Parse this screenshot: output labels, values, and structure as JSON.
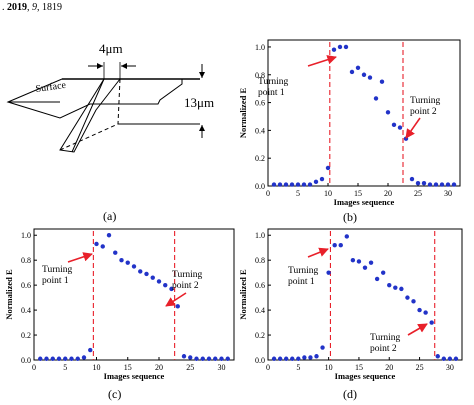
{
  "header": {
    "year": "2019",
    "volume": "9",
    "pages": "1819"
  },
  "schematic": {
    "surface_label": "Surface",
    "width_label": "4μm",
    "depth_label": "13μm",
    "panel_label": "(a)"
  },
  "chart_data": [
    {
      "type": "scatter",
      "panel": "(b)",
      "xlabel": "Images sequence",
      "ylabel": "Normalized E",
      "xlim": [
        0,
        32
      ],
      "ylim": [
        0,
        1.05
      ],
      "xticks": [
        0,
        5,
        10,
        15,
        20,
        25,
        30
      ],
      "yticks": [
        0.0,
        0.2,
        0.4,
        0.6,
        0.8,
        1.0
      ],
      "x": [
        1,
        2,
        3,
        4,
        5,
        6,
        7,
        8,
        9,
        10,
        11,
        12,
        13,
        14,
        15,
        16,
        17,
        18,
        19,
        20,
        21,
        22,
        23,
        24,
        25,
        26,
        27,
        28,
        29,
        30,
        31
      ],
      "y": [
        0.01,
        0.01,
        0.01,
        0.01,
        0.01,
        0.01,
        0.01,
        0.03,
        0.05,
        0.13,
        0.98,
        1.0,
        1.0,
        0.82,
        0.85,
        0.8,
        0.78,
        0.63,
        0.75,
        0.53,
        0.44,
        0.42,
        0.34,
        0.05,
        0.02,
        0.02,
        0.01,
        0.01,
        0.01,
        0.01,
        0.01
      ],
      "vlines": [
        10.3,
        22.5
      ],
      "annotations": [
        {
          "text": "Turning point 1",
          "lines": [
            "Turning",
            "point 1"
          ]
        },
        {
          "text": "Turning point 2",
          "lines": [
            "Turning",
            "point 2"
          ]
        }
      ]
    },
    {
      "type": "scatter",
      "panel": "(c)",
      "xlabel": "Images sequence",
      "ylabel": "Normalized E",
      "xlim": [
        0,
        32
      ],
      "ylim": [
        0,
        1.05
      ],
      "xticks": [
        0,
        5,
        10,
        15,
        20,
        25,
        30
      ],
      "yticks": [
        0.0,
        0.2,
        0.4,
        0.6,
        0.8,
        1.0
      ],
      "x": [
        1,
        2,
        3,
        4,
        5,
        6,
        7,
        8,
        9,
        10,
        11,
        12,
        13,
        14,
        15,
        16,
        17,
        18,
        19,
        20,
        21,
        22,
        23,
        24,
        25,
        26,
        27,
        28,
        29,
        30,
        31
      ],
      "y": [
        0.01,
        0.01,
        0.01,
        0.01,
        0.01,
        0.01,
        0.01,
        0.02,
        0.08,
        0.93,
        0.91,
        1.0,
        0.86,
        0.8,
        0.78,
        0.75,
        0.71,
        0.69,
        0.66,
        0.63,
        0.6,
        0.57,
        0.43,
        0.03,
        0.02,
        0.01,
        0.01,
        0.01,
        0.01,
        0.01,
        0.01
      ],
      "vlines": [
        9.5,
        22.5
      ],
      "annotations": [
        {
          "text": "Turning point 1",
          "lines": [
            "Turning",
            "point 1"
          ]
        },
        {
          "text": "Turning point 2",
          "lines": [
            "Turning",
            "point 2"
          ]
        }
      ]
    },
    {
      "type": "scatter",
      "panel": "(d)",
      "xlabel": "Images sequence",
      "ylabel": "Normalized E",
      "xlim": [
        0,
        32
      ],
      "ylim": [
        0,
        1.05
      ],
      "xticks": [
        0,
        5,
        10,
        15,
        20,
        25,
        30
      ],
      "yticks": [
        0.0,
        0.2,
        0.4,
        0.6,
        0.8,
        1.0
      ],
      "x": [
        1,
        2,
        3,
        4,
        5,
        6,
        7,
        8,
        9,
        10,
        11,
        12,
        13,
        14,
        15,
        16,
        17,
        18,
        19,
        20,
        21,
        22,
        23,
        24,
        25,
        26,
        27,
        28,
        29,
        30,
        31
      ],
      "y": [
        0.01,
        0.01,
        0.01,
        0.01,
        0.01,
        0.02,
        0.02,
        0.03,
        0.1,
        0.7,
        0.92,
        0.92,
        0.99,
        0.8,
        0.79,
        0.74,
        0.78,
        0.65,
        0.7,
        0.6,
        0.58,
        0.57,
        0.5,
        0.47,
        0.4,
        0.38,
        0.3,
        0.03,
        0.01,
        0.01,
        0.01
      ],
      "vlines": [
        10.3,
        27.5
      ],
      "annotations": [
        {
          "text": "Turning point 1",
          "lines": [
            "Turning",
            "point 1"
          ]
        },
        {
          "text": "Turning point 2",
          "lines": [
            "Turning",
            "point 2"
          ]
        }
      ]
    }
  ]
}
